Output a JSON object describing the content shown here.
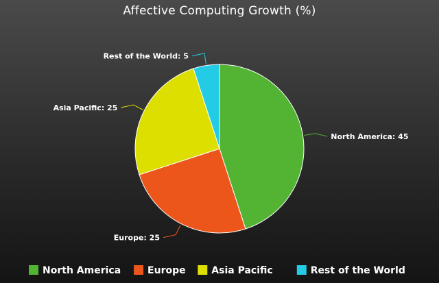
{
  "chart_data": {
    "type": "pie",
    "title": "Affective Computing Growth (%)",
    "legend_position": "bottom",
    "slices": [
      {
        "label": "North America",
        "value": 45,
        "color": "#52b432"
      },
      {
        "label": "Europe",
        "value": 25,
        "color": "#ec561b"
      },
      {
        "label": "Asia Pacific",
        "value": 25,
        "color": "#dddf00"
      },
      {
        "label": "Rest of the World",
        "value": 5,
        "color": "#24cbe5"
      }
    ],
    "data_labels": [
      "North America: 45",
      "Europe: 25",
      "Asia Pacific: 25",
      "Rest of the World: 5"
    ]
  }
}
